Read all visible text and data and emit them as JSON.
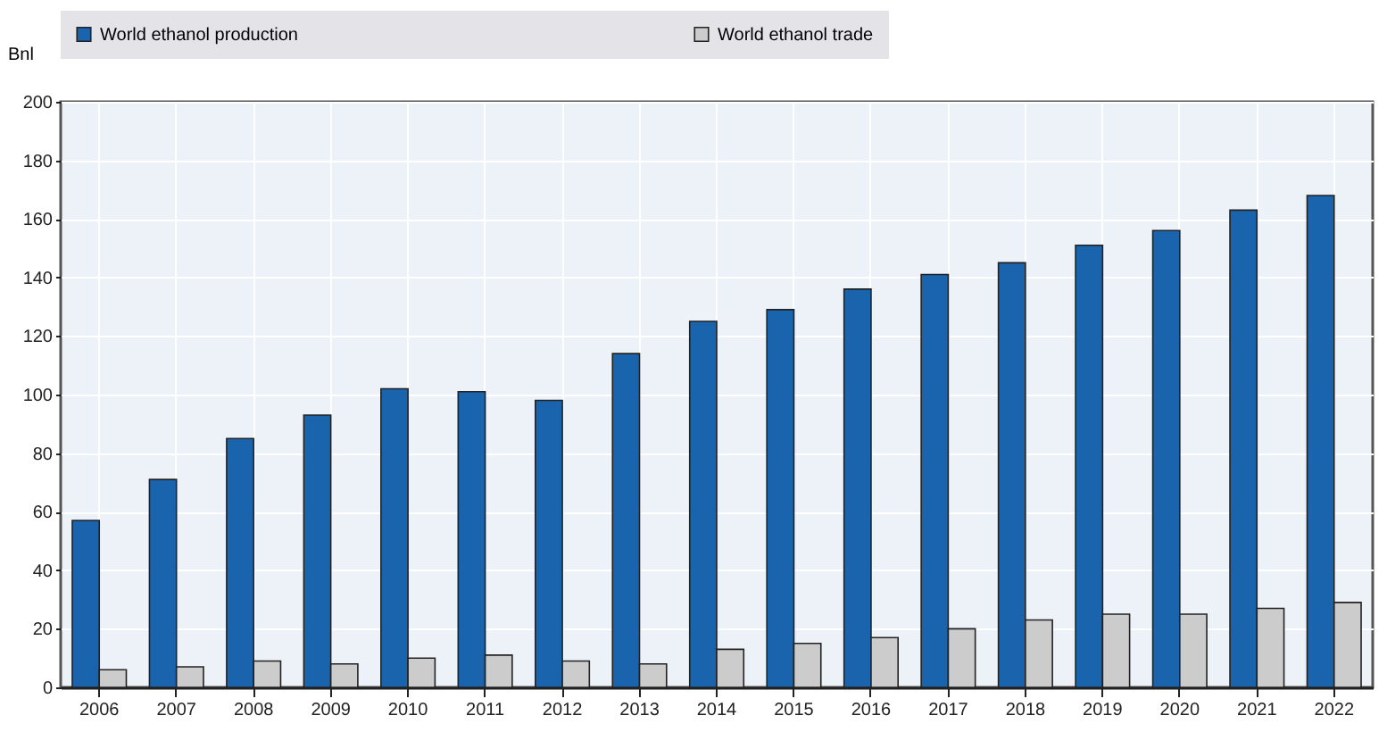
{
  "chart_data": {
    "type": "bar",
    "ylabel": "Bnl",
    "categories": [
      "2006",
      "2007",
      "2008",
      "2009",
      "2010",
      "2011",
      "2012",
      "2013",
      "2014",
      "2015",
      "2016",
      "2017",
      "2018",
      "2019",
      "2020",
      "2021",
      "2022"
    ],
    "series": [
      {
        "name": "World ethanol production",
        "color": "#1a63ad",
        "values": [
          57,
          71,
          85,
          93,
          102,
          101,
          98,
          114,
          125,
          129,
          136,
          141,
          145,
          151,
          156,
          163,
          168
        ]
      },
      {
        "name": "World ethanol trade",
        "color": "#cccccc",
        "values": [
          6,
          7,
          9,
          8,
          10,
          11,
          9,
          8,
          13,
          15,
          17,
          20,
          23,
          25,
          25,
          27,
          29
        ]
      }
    ],
    "ylim": [
      0,
      200
    ],
    "yticks": [
      0,
      20,
      40,
      60,
      80,
      100,
      120,
      140,
      160,
      180,
      200
    ],
    "grid": true,
    "legend": "top"
  }
}
